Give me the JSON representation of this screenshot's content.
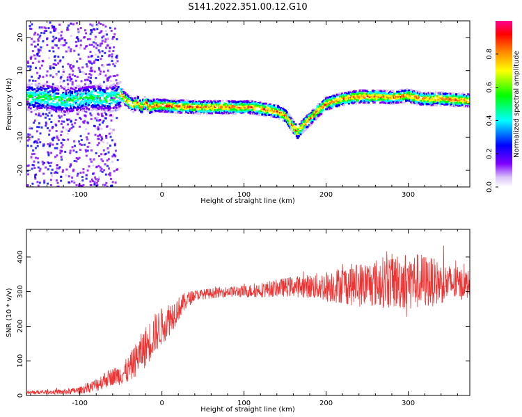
{
  "figure_title": "S141.2022.351.00.12.G10",
  "colorbar": {
    "label": "Normalized spectral amplitude",
    "ticks": [
      "0.0",
      "0.2",
      "0.4",
      "0.6",
      "0.8"
    ],
    "tick_values": [
      0.0,
      0.2,
      0.4,
      0.6,
      0.8
    ],
    "range": [
      0,
      1
    ],
    "colormap": [
      "#ffffff",
      "#c8a0f0",
      "#7f00ff",
      "#0000ff",
      "#00ffff",
      "#00ff00",
      "#ffff00",
      "#ff7f00",
      "#ff0000",
      "#ff00a0"
    ]
  },
  "chart_data": [
    {
      "type": "heatmap",
      "title": "",
      "xlabel": "Height of straight line (km)",
      "ylabel": "Frequency (Hz)",
      "xlim": [
        -165,
        375
      ],
      "ylim": [
        -25,
        25
      ],
      "xticks": [
        -100,
        0,
        100,
        200,
        300
      ],
      "yticks": [
        -20,
        -10,
        0,
        10,
        20
      ],
      "ridge": {
        "x": [
          -165,
          -140,
          -120,
          -100,
          -80,
          -65,
          -55,
          -50,
          -45,
          -40,
          -35,
          -30,
          -25,
          -20,
          -15,
          -10,
          0,
          20,
          50,
          80,
          100,
          110,
          120,
          130,
          140,
          150,
          160,
          165,
          170,
          180,
          190,
          200,
          210,
          220,
          240,
          260,
          280,
          300,
          310,
          320,
          340,
          360,
          375
        ],
        "y": [
          2,
          2,
          1,
          1.5,
          2,
          1.5,
          2,
          3,
          1.5,
          0.5,
          -0.5,
          0.5,
          -1,
          0.5,
          -1,
          -0.5,
          -0.5,
          -0.8,
          -1,
          -1,
          -1,
          -1,
          -1.5,
          -1.8,
          -2.3,
          -3.5,
          -7,
          -8.5,
          -7,
          -4.5,
          -2,
          0,
          0.8,
          1.5,
          2.2,
          2.2,
          2.0,
          2.5,
          1.8,
          1.5,
          1.5,
          1.2,
          1.0
        ]
      }
    },
    {
      "type": "line",
      "title": "",
      "xlabel": "Height of straight line (km)",
      "ylabel": "SNR (10 * v/v)",
      "xlim": [
        -165,
        375
      ],
      "ylim": [
        0,
        480
      ],
      "xticks": [
        -100,
        0,
        100,
        200,
        300
      ],
      "yticks": [
        0,
        100,
        200,
        300,
        400
      ],
      "color": "#ee3333",
      "series": [
        {
          "x": [
            -165,
            -140,
            -120,
            -100,
            -90,
            -80,
            -70,
            -60,
            -50,
            -40,
            -30,
            -20,
            -10,
            0,
            10,
            20,
            30,
            40,
            60,
            80,
            100,
            120,
            140,
            160,
            180,
            200,
            220,
            240,
            260,
            280,
            300,
            320,
            340,
            360,
            375
          ],
          "values": [
            8,
            10,
            10,
            15,
            22,
            30,
            45,
            55,
            60,
            75,
            110,
            140,
            175,
            200,
            225,
            250,
            275,
            290,
            295,
            300,
            300,
            305,
            310,
            315,
            315,
            315,
            320,
            320,
            325,
            330,
            330,
            330,
            325,
            322,
            322
          ],
          "spread": [
            6,
            6,
            8,
            10,
            15,
            20,
            25,
            25,
            30,
            40,
            50,
            60,
            60,
            55,
            50,
            35,
            25,
            15,
            15,
            15,
            18,
            22,
            25,
            30,
            35,
            45,
            55,
            65,
            70,
            80,
            85,
            80,
            60,
            50,
            40
          ]
        }
      ]
    }
  ]
}
